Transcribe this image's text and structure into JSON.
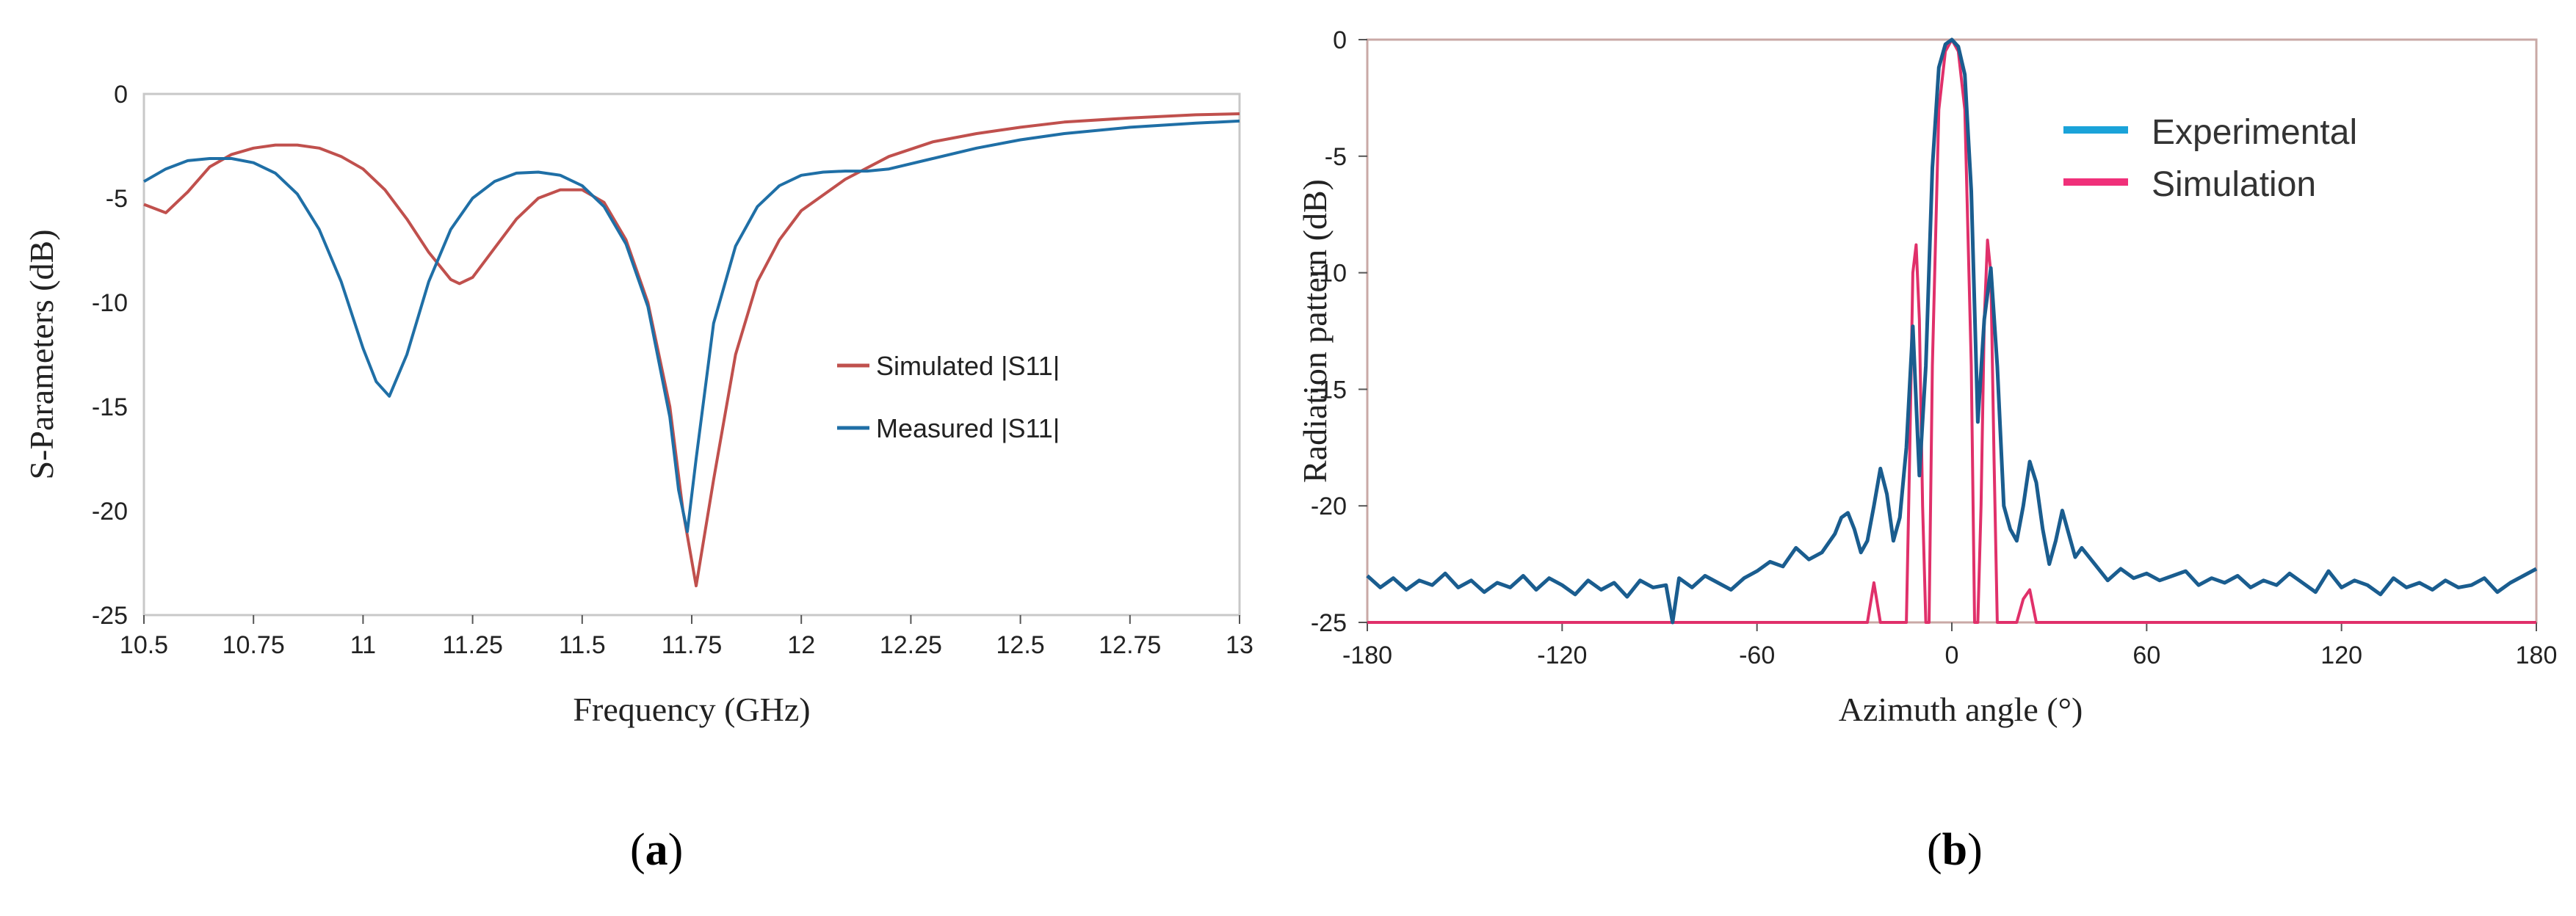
{
  "chart_data": [
    {
      "type": "line",
      "caption_open": "(",
      "caption_letter": "a",
      "caption_close": ")",
      "title": "",
      "xlabel": "Frequency (GHz)",
      "ylabel": "S-Parameters (dB)",
      "xlim": [
        10.5,
        13
      ],
      "ylim": [
        -25,
        0
      ],
      "xticks": [
        10.5,
        10.75,
        11,
        11.25,
        11.5,
        11.75,
        12,
        12.25,
        12.5,
        12.75,
        13
      ],
      "xtick_labels": [
        "10.5",
        "10.75",
        "11",
        "11.25",
        "11.5",
        "11.75",
        "12",
        "12.25",
        "12.5",
        "12.75",
        "13"
      ],
      "yticks": [
        0,
        -5,
        -10,
        -15,
        -20,
        -25
      ],
      "ytick_labels": [
        "0",
        "-5",
        "-10",
        "-15",
        "-20",
        "-25"
      ],
      "grid": false,
      "legend_position": "center-right",
      "series": [
        {
          "name": "Simulated |S11|",
          "color": "#c0504d",
          "x": [
            10.5,
            10.55,
            10.6,
            10.65,
            10.7,
            10.75,
            10.8,
            10.85,
            10.9,
            10.95,
            11.0,
            11.05,
            11.1,
            11.15,
            11.2,
            11.22,
            11.25,
            11.3,
            11.35,
            11.4,
            11.45,
            11.5,
            11.55,
            11.6,
            11.65,
            11.7,
            11.73,
            11.76,
            11.8,
            11.85,
            11.9,
            11.95,
            12.0,
            12.1,
            12.2,
            12.3,
            12.4,
            12.5,
            12.6,
            12.75,
            12.9,
            13.0
          ],
          "values": [
            -5.3,
            -5.7,
            -4.7,
            -3.5,
            -2.9,
            -2.6,
            -2.45,
            -2.45,
            -2.6,
            -3.0,
            -3.6,
            -4.6,
            -6.0,
            -7.6,
            -8.9,
            -9.1,
            -8.8,
            -7.4,
            -6.0,
            -5.0,
            -4.6,
            -4.6,
            -5.2,
            -7.0,
            -10.0,
            -15.0,
            -20.0,
            -23.6,
            -18.5,
            -12.5,
            -9.0,
            -7.0,
            -5.6,
            -4.1,
            -3.0,
            -2.3,
            -1.9,
            -1.6,
            -1.35,
            -1.15,
            -1.0,
            -0.95
          ]
        },
        {
          "name": "Measured |S11|",
          "color": "#1f6fa6",
          "x": [
            10.5,
            10.55,
            10.6,
            10.65,
            10.7,
            10.75,
            10.8,
            10.85,
            10.9,
            10.95,
            11.0,
            11.03,
            11.06,
            11.1,
            11.15,
            11.2,
            11.25,
            11.3,
            11.35,
            11.4,
            11.45,
            11.5,
            11.55,
            11.6,
            11.65,
            11.7,
            11.72,
            11.74,
            11.76,
            11.8,
            11.85,
            11.9,
            11.95,
            12.0,
            12.05,
            12.1,
            12.15,
            12.2,
            12.3,
            12.4,
            12.5,
            12.6,
            12.75,
            12.9,
            13.0
          ],
          "values": [
            -4.2,
            -3.6,
            -3.2,
            -3.1,
            -3.1,
            -3.3,
            -3.8,
            -4.8,
            -6.5,
            -9.0,
            -12.2,
            -13.8,
            -14.5,
            -12.5,
            -9.0,
            -6.5,
            -5.0,
            -4.2,
            -3.8,
            -3.75,
            -3.9,
            -4.4,
            -5.4,
            -7.2,
            -10.2,
            -15.5,
            -19.0,
            -21.0,
            -17.5,
            -11.0,
            -7.3,
            -5.4,
            -4.4,
            -3.9,
            -3.75,
            -3.7,
            -3.7,
            -3.6,
            -3.1,
            -2.6,
            -2.2,
            -1.9,
            -1.6,
            -1.4,
            -1.3
          ]
        }
      ]
    },
    {
      "type": "line",
      "caption_open": "(",
      "caption_letter": "b",
      "caption_close": ")",
      "title": "",
      "xlabel": "Azimuth angle (°)",
      "ylabel": "Radiation pattern (dB)",
      "xlim": [
        -180,
        180
      ],
      "ylim": [
        -25,
        0
      ],
      "xticks": [
        -180,
        -120,
        -60,
        0,
        60,
        120,
        180
      ],
      "xtick_labels": [
        "-180",
        "-120",
        "-60",
        "0",
        "60",
        "120",
        "180"
      ],
      "yticks": [
        0,
        -5,
        -10,
        -15,
        -20,
        -25
      ],
      "ytick_labels": [
        "0",
        "-5",
        "-10",
        "-15",
        "-20",
        "-25"
      ],
      "grid": false,
      "legend_position": "top-right",
      "series": [
        {
          "name": "Simulation",
          "color": "#e0306a",
          "legend_color": "#f0307a",
          "x": [
            -180,
            -26,
            -24,
            -22,
            -20,
            -18,
            -14,
            -13,
            -12,
            -11,
            -10,
            -9,
            -8,
            -7,
            -6,
            -4,
            -2,
            0,
            2,
            4,
            6,
            7,
            8,
            9,
            10,
            11,
            12,
            13,
            14,
            16,
            18,
            20,
            22,
            24,
            26,
            180
          ],
          "values": [
            -25,
            -25,
            -23.3,
            -25,
            -25,
            -25,
            -25,
            -18,
            -10,
            -8.8,
            -12,
            -20,
            -25,
            -25,
            -14,
            -3,
            -0.5,
            0,
            -0.5,
            -3,
            -14,
            -25,
            -25,
            -20,
            -12,
            -8.6,
            -10,
            -18,
            -25,
            -25,
            -25,
            -25,
            -24,
            -23.6,
            -25,
            -25
          ]
        },
        {
          "name": "Experimental",
          "color": "#1a5d8f",
          "legend_color": "#1aa3d9",
          "x": [
            -180,
            -176,
            -172,
            -168,
            -164,
            -160,
            -156,
            -152,
            -148,
            -144,
            -140,
            -136,
            -132,
            -128,
            -124,
            -120,
            -116,
            -112,
            -108,
            -104,
            -100,
            -96,
            -92,
            -88,
            -86,
            -84,
            -80,
            -76,
            -72,
            -68,
            -64,
            -60,
            -56,
            -52,
            -48,
            -44,
            -40,
            -36,
            -34,
            -32,
            -30,
            -28,
            -26,
            -24,
            -22,
            -20,
            -18,
            -16,
            -14,
            -12,
            -10,
            -8,
            -6,
            -4,
            -2,
            0,
            2,
            4,
            6,
            8,
            10,
            12,
            14,
            16,
            18,
            20,
            22,
            24,
            26,
            28,
            30,
            32,
            34,
            36,
            38,
            40,
            44,
            48,
            52,
            56,
            60,
            64,
            68,
            72,
            76,
            80,
            84,
            88,
            92,
            96,
            100,
            104,
            108,
            112,
            116,
            120,
            124,
            128,
            132,
            136,
            140,
            144,
            148,
            152,
            156,
            160,
            164,
            168,
            172,
            176,
            180
          ],
          "values": [
            -23,
            -23.5,
            -23.1,
            -23.6,
            -23.2,
            -23.4,
            -22.9,
            -23.5,
            -23.2,
            -23.7,
            -23.3,
            -23.5,
            -23,
            -23.6,
            -23.1,
            -23.4,
            -23.8,
            -23.2,
            -23.6,
            -23.3,
            -23.9,
            -23.2,
            -23.5,
            -23.4,
            -25,
            -23.1,
            -23.5,
            -23,
            -23.3,
            -23.6,
            -23.1,
            -22.8,
            -22.4,
            -22.6,
            -21.8,
            -22.3,
            -22,
            -21.2,
            -20.5,
            -20.3,
            -21,
            -22,
            -21.5,
            -20,
            -18.4,
            -19.5,
            -21.5,
            -20.5,
            -17.5,
            -12.3,
            -18.7,
            -14,
            -5.5,
            -1.2,
            -0.2,
            0,
            -0.3,
            -1.5,
            -6.5,
            -16.4,
            -12,
            -9.8,
            -14,
            -20,
            -21,
            -21.5,
            -20,
            -18.1,
            -19,
            -21,
            -22.5,
            -21.5,
            -20.2,
            -21.2,
            -22.2,
            -21.8,
            -22.5,
            -23.2,
            -22.7,
            -23.1,
            -22.9,
            -23.2,
            -23,
            -22.8,
            -23.4,
            -23.1,
            -23.3,
            -23,
            -23.5,
            -23.2,
            -23.4,
            -22.9,
            -23.3,
            -23.7,
            -22.8,
            -23.5,
            -23.2,
            -23.4,
            -23.8,
            -23.1,
            -23.5,
            -23.3,
            -23.6,
            -23.2,
            -23.5,
            -23.4,
            -23.1,
            -23.7,
            -23.3,
            -23,
            -22.7
          ]
        }
      ]
    }
  ]
}
